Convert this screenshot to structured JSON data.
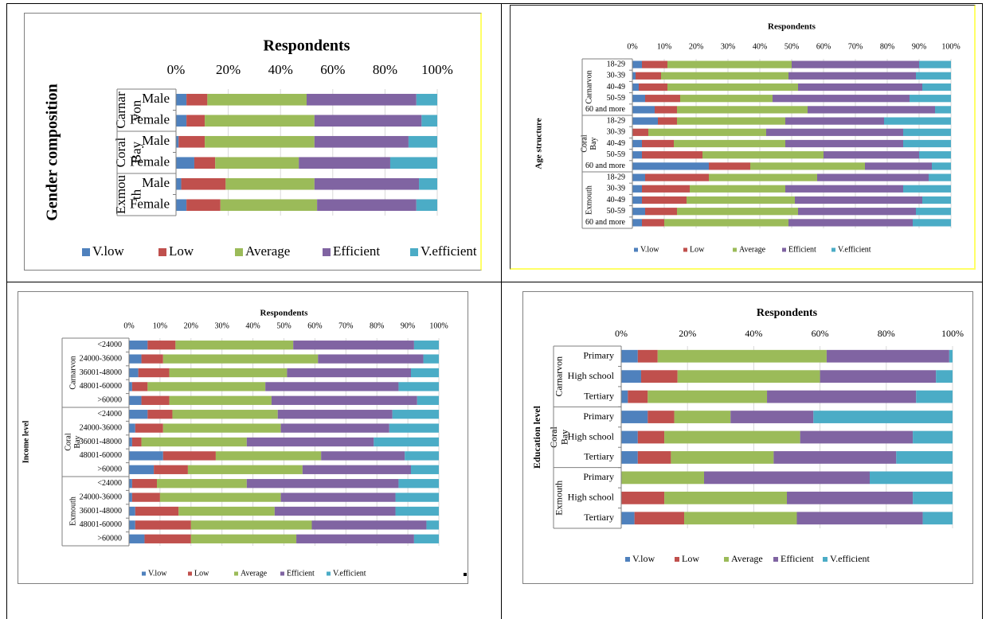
{
  "colors": {
    "V.low": "#4F81BD",
    "Low": "#C0504D",
    "Average": "#9BBB59",
    "Efficient": "#8064A2",
    "V.efficient": "#4BACC6",
    "axis": "#7f7f7f",
    "grid": "#d9d9d9",
    "yellow_border": "#FFFF66"
  },
  "legend_labels": [
    "V.low",
    "Low",
    "Average",
    "Efficient",
    "V.efficient"
  ],
  "chart_data": [
    {
      "type": "bar",
      "orientation": "horizontal",
      "stacked": "percent",
      "title": "Respondents",
      "ylabel": "Gender composition",
      "x_ticks": [
        "0%",
        "20%",
        "40%",
        "60%",
        "80%",
        "100%"
      ],
      "groups": [
        {
          "label": "Carnar von",
          "categories": [
            "Male",
            "Female"
          ]
        },
        {
          "label": "Coral Bay",
          "categories": [
            "Male",
            "Female"
          ]
        },
        {
          "label": "Exmou th",
          "categories": [
            "Male",
            "Female"
          ]
        }
      ],
      "categories": [
        "Male",
        "Female",
        "Male",
        "Female",
        "Male",
        "Female"
      ],
      "series": [
        {
          "name": "V.low",
          "values": [
            4,
            4,
            1,
            7,
            2,
            4
          ]
        },
        {
          "name": "Low",
          "values": [
            8,
            7,
            10,
            8,
            17,
            13
          ]
        },
        {
          "name": "Average",
          "values": [
            38,
            42,
            42,
            32,
            34,
            37
          ]
        },
        {
          "name": "Efficient",
          "values": [
            42,
            41,
            36,
            35,
            40,
            38
          ]
        },
        {
          "name": "V.efficient",
          "values": [
            8,
            6,
            11,
            18,
            7,
            8
          ]
        }
      ],
      "xlim": [
        0,
        100
      ],
      "legend": "bottom"
    },
    {
      "type": "bar",
      "orientation": "horizontal",
      "stacked": "percent",
      "title": "Respondents",
      "ylabel": "Age structure",
      "x_ticks": [
        "0%",
        "10%",
        "20%",
        "30%",
        "40%",
        "50%",
        "60%",
        "70%",
        "80%",
        "90%",
        "100%"
      ],
      "groups": [
        {
          "label": "Carnarvon",
          "categories": [
            "18-29",
            "30-39",
            "40-49",
            "50-59",
            "60 and more"
          ]
        },
        {
          "label": "Coral Bay",
          "categories": [
            "18-29",
            "30-39",
            "40-49",
            "50-59",
            "60 and more"
          ]
        },
        {
          "label": "Exmouth",
          "categories": [
            "18-29",
            "30-39",
            "40-49",
            "50-59",
            "60 and more"
          ]
        }
      ],
      "categories": [
        "18-29",
        "30-39",
        "40-49",
        "50-59",
        "60 and more",
        "18-29",
        "30-39",
        "40-49",
        "50-59",
        "60 and more",
        "18-29",
        "30-39",
        "40-49",
        "50-59",
        "60 and more"
      ],
      "series": [
        {
          "name": "V.low",
          "values": [
            3,
            1,
            2,
            4,
            7,
            8,
            0,
            3,
            3,
            24,
            4,
            3,
            3,
            4,
            3
          ]
        },
        {
          "name": "Low",
          "values": [
            8,
            8,
            9,
            11,
            7,
            6,
            5,
            10,
            19,
            13,
            20,
            15,
            14,
            10,
            7
          ]
        },
        {
          "name": "Average",
          "values": [
            39,
            40,
            41,
            29,
            41,
            34,
            37,
            35,
            38,
            36,
            34,
            30,
            34,
            38,
            39
          ]
        },
        {
          "name": "Efficient",
          "values": [
            40,
            40,
            39,
            43,
            40,
            31,
            43,
            37,
            30,
            21,
            35,
            37,
            40,
            37,
            39
          ]
        },
        {
          "name": "V.efficient",
          "values": [
            10,
            11,
            9,
            13,
            5,
            21,
            15,
            15,
            10,
            6,
            7,
            15,
            9,
            11,
            12
          ]
        }
      ],
      "xlim": [
        0,
        100
      ],
      "legend": "bottom"
    },
    {
      "type": "bar",
      "orientation": "horizontal",
      "stacked": "percent",
      "title": "Respondents",
      "ylabel": "Income level",
      "x_ticks": [
        "0%",
        "10%",
        "20%",
        "30%",
        "40%",
        "50%",
        "60%",
        "70%",
        "80%",
        "90%",
        "100%"
      ],
      "groups": [
        {
          "label": "Carnarvon",
          "categories": [
            "<24000",
            "24000-36000",
            "36001-48000",
            "48001-60000",
            ">60000"
          ]
        },
        {
          "label": "Coral Bay",
          "categories": [
            "<24000",
            "24000-36000",
            "36001-48000",
            "48001-60000",
            ">60000"
          ]
        },
        {
          "label": "Exmouth",
          "categories": [
            "<24000",
            "24000-36000",
            "36001-48000",
            "48001-60000",
            ">60000"
          ]
        }
      ],
      "categories": [
        "<24000",
        "24000-36000",
        "36001-48000",
        "48001-60000",
        ">60000",
        "<24000",
        "24000-36000",
        "36001-48000",
        "48001-60000",
        ">60000",
        "<24000",
        "24000-36000",
        "36001-48000",
        "48001-60000",
        ">60000"
      ],
      "series": [
        {
          "name": "V.low",
          "values": [
            6,
            4,
            3,
            1,
            4,
            6,
            2,
            1,
            11,
            8,
            1,
            1,
            2,
            2,
            5
          ]
        },
        {
          "name": "Low",
          "values": [
            9,
            7,
            10,
            5,
            9,
            8,
            9,
            3,
            17,
            11,
            8,
            9,
            14,
            18,
            15
          ]
        },
        {
          "name": "Average",
          "values": [
            38,
            50,
            38,
            38,
            33,
            34,
            38,
            34,
            34,
            37,
            29,
            39,
            31,
            39,
            34
          ]
        },
        {
          "name": "Efficient",
          "values": [
            39,
            34,
            40,
            43,
            47,
            37,
            35,
            41,
            27,
            35,
            49,
            37,
            39,
            37,
            38
          ]
        },
        {
          "name": "V.efficient",
          "values": [
            8,
            5,
            9,
            13,
            7,
            15,
            16,
            21,
            11,
            9,
            13,
            14,
            14,
            4,
            8
          ]
        }
      ],
      "xlim": [
        0,
        100
      ],
      "legend": "bottom"
    },
    {
      "type": "bar",
      "orientation": "horizontal",
      "stacked": "percent",
      "title": "Respondents",
      "ylabel": "Education level",
      "x_ticks": [
        "0%",
        "20%",
        "40%",
        "60%",
        "80%",
        "100%"
      ],
      "groups": [
        {
          "label": "Carnarvon",
          "categories": [
            "Primary",
            "High school",
            "Tertiary"
          ]
        },
        {
          "label": "Coral Bay",
          "categories": [
            "Primary",
            "High school",
            "Tertiary"
          ]
        },
        {
          "label": "Exmouth",
          "categories": [
            "Primary",
            "High school",
            "Tertiary"
          ]
        }
      ],
      "categories": [
        "Primary",
        "High school",
        "Tertiary",
        "Primary",
        "High school",
        "Tertiary",
        "Primary",
        "High school",
        "Tertiary"
      ],
      "series": [
        {
          "name": "V.low",
          "values": [
            5,
            6,
            2,
            8,
            5,
            5,
            0,
            0,
            4
          ]
        },
        {
          "name": "Low",
          "values": [
            6,
            11,
            6,
            8,
            8,
            10,
            0,
            13,
            15
          ]
        },
        {
          "name": "Average",
          "values": [
            51,
            43,
            36,
            17,
            41,
            31,
            25,
            37,
            34
          ]
        },
        {
          "name": "Efficient",
          "values": [
            37,
            35,
            45,
            25,
            34,
            37,
            50,
            38,
            38
          ]
        },
        {
          "name": "V.efficient",
          "values": [
            1,
            5,
            11,
            42,
            12,
            17,
            25,
            12,
            9
          ]
        }
      ],
      "xlim": [
        0,
        100
      ],
      "legend": "bottom"
    }
  ]
}
